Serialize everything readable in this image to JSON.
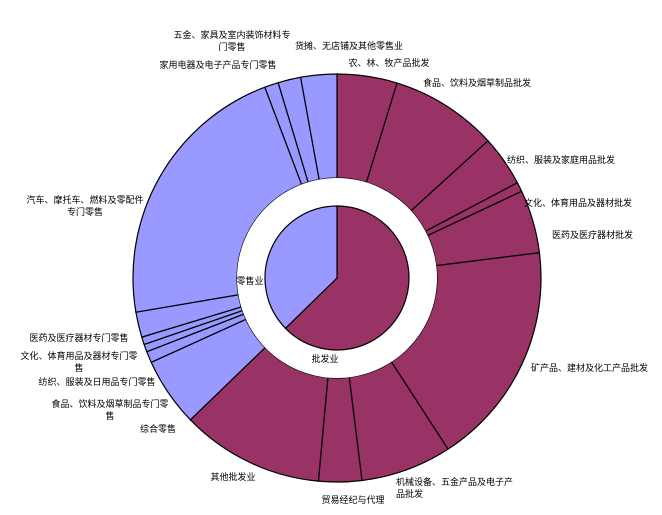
{
  "chart_data": {
    "type": "pie",
    "subtype": "sunburst",
    "colors": {
      "wholesale": "#993366",
      "retail": "#9999ff",
      "outline": "#000000"
    },
    "inner": [
      {
        "id": "wholesale",
        "label": "批发业",
        "value": 62.7
      },
      {
        "id": "retail",
        "label": "零售业",
        "value": 37.3
      }
    ],
    "outer": [
      {
        "label": "农、林、牧产品批发",
        "value": 4.75,
        "parent": "wholesale"
      },
      {
        "label": "食品、饮料及烟草制品批发",
        "value": 8.5,
        "parent": "wholesale"
      },
      {
        "label": "纺织、服装及家庭用品批发",
        "value": 4.0,
        "parent": "wholesale"
      },
      {
        "label": "文化、体育用品及器材批发",
        "value": 0.75,
        "parent": "wholesale"
      },
      {
        "label": "医药及医疗器材批发",
        "value": 5.0,
        "parent": "wholesale"
      },
      {
        "label": "矿产品、建材及化工产品批发",
        "value": 17.8,
        "parent": "wholesale"
      },
      {
        "label": "机械设备、五金产品及电子产品批发",
        "value": 7.2,
        "parent": "wholesale"
      },
      {
        "label": "贸易经纪与代理",
        "value": 3.4,
        "parent": "wholesale"
      },
      {
        "label": "其他批发业",
        "value": 11.3,
        "parent": "wholesale"
      },
      {
        "label": "综合零售",
        "value": 5.45,
        "parent": "retail"
      },
      {
        "label": "食品、饮料及烟草制品专门零售",
        "value": 0.9,
        "parent": "retail"
      },
      {
        "label": "纺织、服装及日用品专门零售",
        "value": 0.6,
        "parent": "retail"
      },
      {
        "label": "文化、体育用品及器材专门零售",
        "value": 0.6,
        "parent": "retail"
      },
      {
        "label": "医药及医疗器材专门零售",
        "value": 2.0,
        "parent": "retail"
      },
      {
        "label": "汽车、摩托车、燃料及零配件专门零售",
        "value": 21.9,
        "parent": "retail"
      },
      {
        "label": "家用电器及电子产品专门零售",
        "value": 1.1,
        "parent": "retail"
      },
      {
        "label": "五金、家具及室内装饰材料专门零售",
        "value": 1.8,
        "parent": "retail"
      },
      {
        "label": "货摊、无店铺及其他零售业",
        "value": 2.85,
        "parent": "retail"
      }
    ]
  }
}
